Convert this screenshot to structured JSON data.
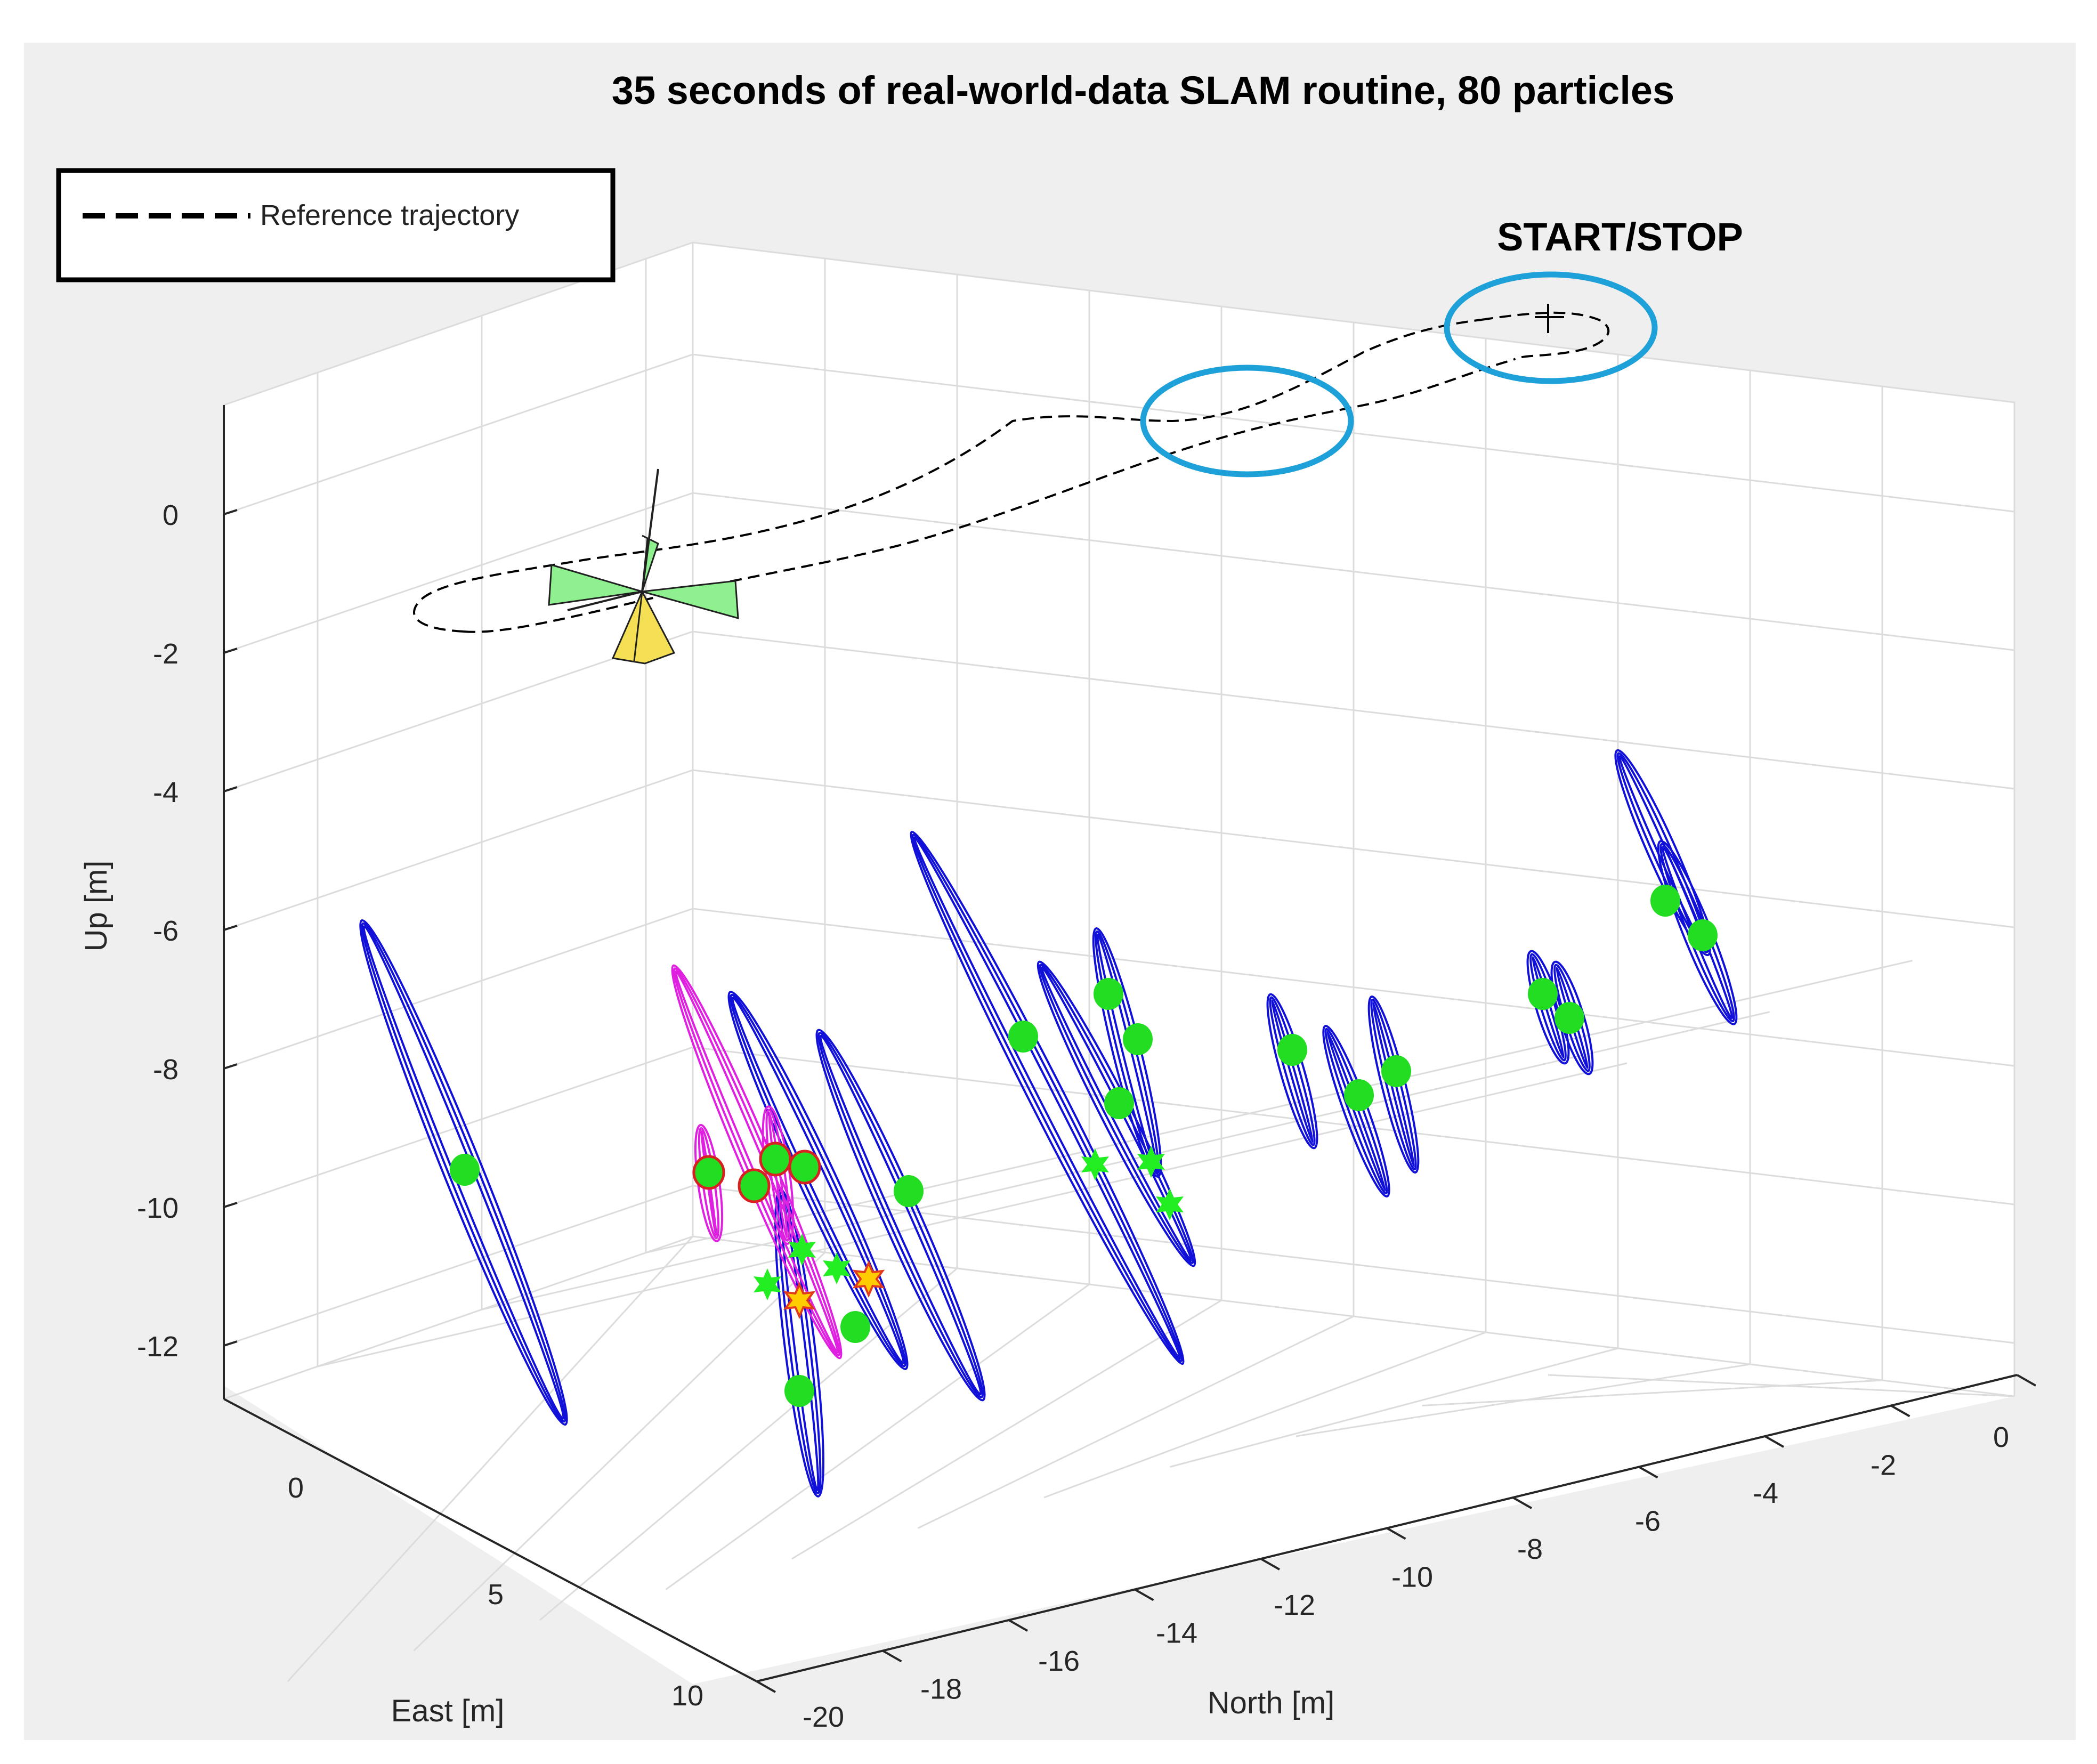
{
  "chart_data": {
    "type": "scatter",
    "title": "35 seconds of real-world-data SLAM routine, 80 particles",
    "xlabel": "North [m]",
    "ylabel": "East [m]",
    "zlabel": "Up [m]",
    "x_ticks": [
      "-20",
      "-18",
      "-16",
      "-14",
      "-12",
      "-10",
      "-8",
      "-6",
      "-4",
      "-2",
      "0"
    ],
    "y_ticks": [
      "0",
      "5",
      "10"
    ],
    "z_ticks": [
      "0",
      "-2",
      "-4",
      "-6",
      "-8",
      "-10",
      "-12"
    ],
    "xlim": [
      -20,
      0
    ],
    "ylim": [
      0,
      10
    ],
    "zlim": [
      -13,
      1
    ],
    "grid": true,
    "legend": {
      "placement": "top-left",
      "entries": [
        "Reference trajectory"
      ]
    },
    "annotations": [
      "START/STOP"
    ],
    "series": [
      {
        "name": "Reference trajectory",
        "style": "dashed",
        "color": "#000000"
      }
    ],
    "colors": {
      "landmark_ellipse": "#1010d8",
      "selected_ellipse": "#e020e0",
      "landmark_marker": "#22dd22",
      "estimate_star": "#22ee22",
      "highlight_star": "#ffcc00",
      "callout_circle": "#1ea0d8",
      "background": "#efefef"
    }
  }
}
